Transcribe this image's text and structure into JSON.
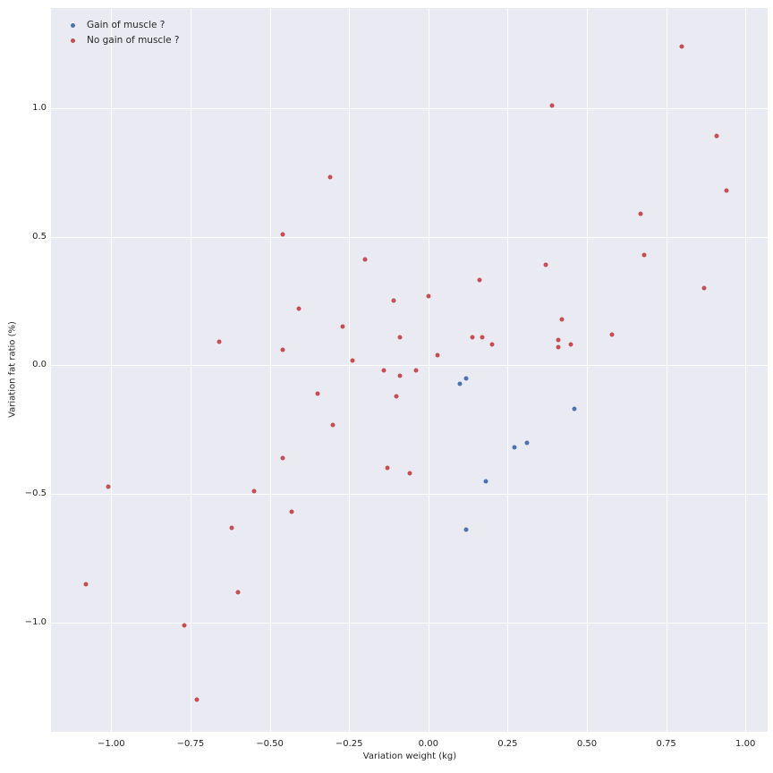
{
  "figure": {
    "background": "#ffffff",
    "axes_background": "#eaeaf2",
    "grid_color": "#ffffff",
    "text_color": "#262626"
  },
  "chart_data": {
    "type": "scatter",
    "title": "",
    "xlabel": "Variation weight (kg)",
    "ylabel": "Variation fat ratio (%)",
    "xlim": [
      -1.19,
      1.07
    ],
    "ylim": [
      -1.424,
      1.388
    ],
    "grid": true,
    "legend_position": "upper-left",
    "x_ticks": [
      -1.0,
      -0.75,
      -0.5,
      -0.25,
      0.0,
      0.25,
      0.5,
      0.75,
      1.0
    ],
    "x_tick_labels": [
      "−1.00",
      "−0.75",
      "−0.50",
      "−0.25",
      "0.00",
      "0.25",
      "0.50",
      "0.75",
      "1.00"
    ],
    "y_ticks": [
      1.0,
      0.5,
      0.0,
      -0.5,
      -1.0
    ],
    "y_tick_labels": [
      "1.0",
      "0.5",
      "0.0",
      "−0.5",
      "−1.0"
    ],
    "series": [
      {
        "name": "Gain of muscle ?",
        "color": "#4c72b0",
        "points": [
          [
            0.1,
            -0.07
          ],
          [
            0.12,
            -0.05
          ],
          [
            0.46,
            -0.17
          ],
          [
            0.27,
            -0.32
          ],
          [
            0.31,
            -0.3
          ],
          [
            0.18,
            -0.45
          ],
          [
            0.12,
            -0.64
          ]
        ]
      },
      {
        "name": "No gain of muscle ?",
        "color": "#c44e52",
        "points": [
          [
            0.8,
            1.24
          ],
          [
            0.39,
            1.01
          ],
          [
            0.91,
            0.89
          ],
          [
            -0.31,
            0.73
          ],
          [
            0.94,
            0.68
          ],
          [
            0.67,
            0.59
          ],
          [
            -0.46,
            0.51
          ],
          [
            0.68,
            0.43
          ],
          [
            -0.2,
            0.41
          ],
          [
            0.37,
            0.39
          ],
          [
            0.16,
            0.33
          ],
          [
            0.87,
            0.3
          ],
          [
            0.0,
            0.27
          ],
          [
            -0.11,
            0.25
          ],
          [
            -0.41,
            0.22
          ],
          [
            0.42,
            0.18
          ],
          [
            -0.27,
            0.15
          ],
          [
            0.58,
            0.12
          ],
          [
            -0.09,
            0.11
          ],
          [
            0.14,
            0.11
          ],
          [
            0.17,
            0.11
          ],
          [
            0.41,
            0.1
          ],
          [
            -0.66,
            0.09
          ],
          [
            0.45,
            0.08
          ],
          [
            0.2,
            0.08
          ],
          [
            0.41,
            0.07
          ],
          [
            -0.46,
            0.06
          ],
          [
            0.03,
            0.04
          ],
          [
            -0.24,
            0.02
          ],
          [
            -0.14,
            -0.02
          ],
          [
            -0.04,
            -0.02
          ],
          [
            -0.09,
            -0.04
          ],
          [
            -0.35,
            -0.11
          ],
          [
            -0.1,
            -0.12
          ],
          [
            -0.3,
            -0.23
          ],
          [
            -0.46,
            -0.36
          ],
          [
            -0.13,
            -0.4
          ],
          [
            -0.06,
            -0.42
          ],
          [
            -1.01,
            -0.47
          ],
          [
            -0.55,
            -0.49
          ],
          [
            -0.43,
            -0.57
          ],
          [
            -0.62,
            -0.63
          ],
          [
            -1.08,
            -0.85
          ],
          [
            -0.6,
            -0.88
          ],
          [
            -0.77,
            -1.01
          ],
          [
            -0.73,
            -1.3
          ]
        ]
      }
    ]
  }
}
